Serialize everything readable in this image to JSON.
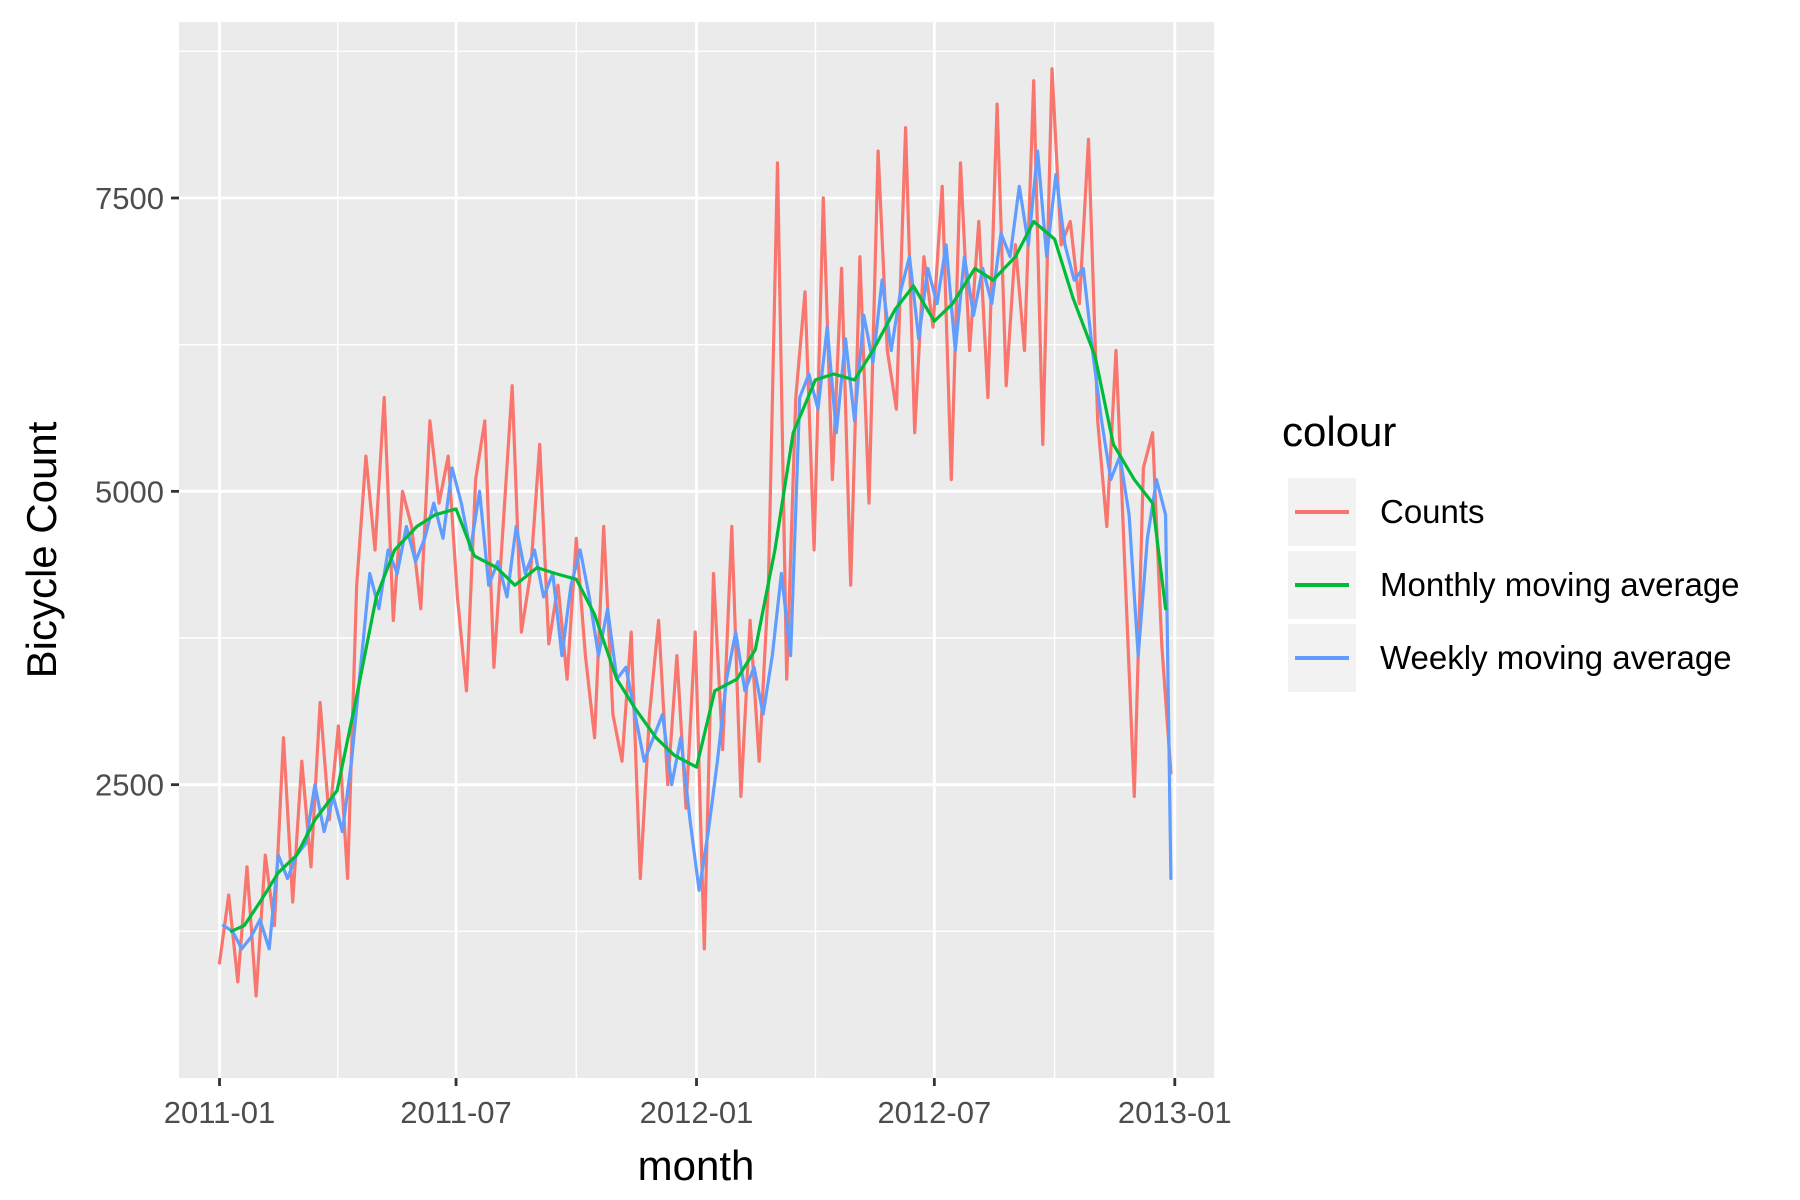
{
  "chart_data": {
    "type": "line",
    "xlabel": "month",
    "ylabel": "Bicycle Count",
    "x_ticks": [
      "2011-01",
      "2011-07",
      "2012-01",
      "2012-07",
      "2013-01"
    ],
    "y_ticks": [
      2500,
      5000,
      7500
    ],
    "xlim": [
      "2010-12-01",
      "2013-01-31"
    ],
    "ylim": [
      0,
      9000
    ],
    "grid": true,
    "legend": {
      "title": "colour",
      "placement": "right",
      "entries": [
        "Counts",
        "Monthly moving average",
        "Weekly moving average"
      ]
    },
    "series": [
      {
        "name": "Counts",
        "color": "#F8766D",
        "x": [
          "2011-01-01",
          "2011-01-08",
          "2011-01-15",
          "2011-01-22",
          "2011-01-29",
          "2011-02-05",
          "2011-02-12",
          "2011-02-19",
          "2011-02-26",
          "2011-03-05",
          "2011-03-12",
          "2011-03-19",
          "2011-03-26",
          "2011-04-02",
          "2011-04-09",
          "2011-04-16",
          "2011-04-23",
          "2011-04-30",
          "2011-05-07",
          "2011-05-14",
          "2011-05-21",
          "2011-05-28",
          "2011-06-04",
          "2011-06-11",
          "2011-06-18",
          "2011-06-25",
          "2011-07-02",
          "2011-07-09",
          "2011-07-16",
          "2011-07-23",
          "2011-07-30",
          "2011-08-06",
          "2011-08-13",
          "2011-08-20",
          "2011-08-27",
          "2011-09-03",
          "2011-09-10",
          "2011-09-17",
          "2011-09-24",
          "2011-10-01",
          "2011-10-08",
          "2011-10-15",
          "2011-10-22",
          "2011-10-29",
          "2011-11-05",
          "2011-11-12",
          "2011-11-19",
          "2011-11-26",
          "2011-12-03",
          "2011-12-10",
          "2011-12-17",
          "2011-12-24",
          "2011-12-31",
          "2012-01-07",
          "2012-01-14",
          "2012-01-21",
          "2012-01-28",
          "2012-02-04",
          "2012-02-11",
          "2012-02-18",
          "2012-02-25",
          "2012-03-03",
          "2012-03-10",
          "2012-03-17",
          "2012-03-24",
          "2012-03-31",
          "2012-04-07",
          "2012-04-14",
          "2012-04-21",
          "2012-04-28",
          "2012-05-05",
          "2012-05-12",
          "2012-05-19",
          "2012-05-26",
          "2012-06-02",
          "2012-06-09",
          "2012-06-16",
          "2012-06-23",
          "2012-06-30",
          "2012-07-07",
          "2012-07-14",
          "2012-07-21",
          "2012-07-28",
          "2012-08-04",
          "2012-08-11",
          "2012-08-18",
          "2012-08-25",
          "2012-09-01",
          "2012-09-08",
          "2012-09-15",
          "2012-09-22",
          "2012-09-29",
          "2012-10-06",
          "2012-10-13",
          "2012-10-20",
          "2012-10-27",
          "2012-11-03",
          "2012-11-10",
          "2012-11-17",
          "2012-11-24",
          "2012-12-01",
          "2012-12-08",
          "2012-12-15",
          "2012-12-22",
          "2012-12-29"
        ],
        "values": [
          980,
          1560,
          820,
          1800,
          700,
          1900,
          1300,
          2900,
          1500,
          2700,
          1800,
          3200,
          2200,
          3000,
          1700,
          4200,
          5300,
          4500,
          5800,
          3900,
          5000,
          4700,
          4000,
          5600,
          4900,
          5300,
          4100,
          3300,
          5100,
          5600,
          3500,
          4700,
          5900,
          3800,
          4300,
          5400,
          3700,
          4200,
          3400,
          4600,
          3600,
          2900,
          4700,
          3100,
          2700,
          3800,
          1700,
          3100,
          3900,
          2500,
          3600,
          2300,
          3800,
          1100,
          4300,
          2800,
          4700,
          2400,
          3900,
          2700,
          4200,
          7800,
          3400,
          5800,
          6700,
          4500,
          7500,
          5100,
          6900,
          4200,
          7000,
          4900,
          7900,
          6200,
          5700,
          8100,
          5500,
          7000,
          6400,
          7600,
          5100,
          7800,
          6200,
          7300,
          5800,
          8300,
          5900,
          7100,
          6200,
          8500,
          5400,
          8600,
          7100,
          7300,
          6600,
          8000,
          5600,
          4700,
          6200,
          4300,
          2400,
          5200,
          5500,
          3700,
          2600
        ]
      },
      {
        "name": "Monthly moving average",
        "color": "#00BA38",
        "x": [
          "2011-01-10",
          "2011-01-20",
          "2011-02-01",
          "2011-02-15",
          "2011-03-01",
          "2011-03-15",
          "2011-04-01",
          "2011-04-15",
          "2011-05-01",
          "2011-05-15",
          "2011-06-01",
          "2011-06-15",
          "2011-07-01",
          "2011-07-15",
          "2011-08-01",
          "2011-08-15",
          "2011-09-01",
          "2011-09-15",
          "2011-10-01",
          "2011-10-15",
          "2011-11-01",
          "2011-11-15",
          "2011-12-01",
          "2011-12-15",
          "2012-01-01",
          "2012-01-15",
          "2012-02-01",
          "2012-02-15",
          "2012-03-01",
          "2012-03-15",
          "2012-04-01",
          "2012-04-15",
          "2012-05-01",
          "2012-05-15",
          "2012-06-01",
          "2012-06-15",
          "2012-07-01",
          "2012-07-15",
          "2012-08-01",
          "2012-08-15",
          "2012-09-01",
          "2012-09-15",
          "2012-10-01",
          "2012-10-15",
          "2012-11-01",
          "2012-11-15",
          "2012-12-01",
          "2012-12-15",
          "2012-12-25"
        ],
        "values": [
          1250,
          1300,
          1500,
          1750,
          1900,
          2200,
          2450,
          3200,
          4100,
          4500,
          4700,
          4800,
          4850,
          4450,
          4350,
          4200,
          4350,
          4300,
          4250,
          3950,
          3400,
          3150,
          2900,
          2750,
          2650,
          3300,
          3400,
          3650,
          4500,
          5500,
          5950,
          6000,
          5950,
          6200,
          6550,
          6750,
          6450,
          6600,
          6900,
          6800,
          7000,
          7300,
          7150,
          6650,
          6150,
          5400,
          5100,
          4900,
          4000
        ]
      },
      {
        "name": "Weekly moving average",
        "color": "#619CFF",
        "x": [
          "2011-01-04",
          "2011-01-11",
          "2011-01-18",
          "2011-01-25",
          "2011-02-01",
          "2011-02-08",
          "2011-02-15",
          "2011-02-22",
          "2011-03-01",
          "2011-03-08",
          "2011-03-15",
          "2011-03-22",
          "2011-03-29",
          "2011-04-05",
          "2011-04-12",
          "2011-04-19",
          "2011-04-26",
          "2011-05-03",
          "2011-05-10",
          "2011-05-17",
          "2011-05-24",
          "2011-05-31",
          "2011-06-07",
          "2011-06-14",
          "2011-06-21",
          "2011-06-28",
          "2011-07-05",
          "2011-07-12",
          "2011-07-19",
          "2011-07-26",
          "2011-08-02",
          "2011-08-09",
          "2011-08-16",
          "2011-08-23",
          "2011-08-30",
          "2011-09-06",
          "2011-09-13",
          "2011-09-20",
          "2011-09-27",
          "2011-10-04",
          "2011-10-11",
          "2011-10-18",
          "2011-10-25",
          "2011-11-01",
          "2011-11-08",
          "2011-11-15",
          "2011-11-22",
          "2011-11-29",
          "2011-12-06",
          "2011-12-13",
          "2011-12-20",
          "2011-12-27",
          "2012-01-03",
          "2012-01-10",
          "2012-01-17",
          "2012-01-24",
          "2012-01-31",
          "2012-02-07",
          "2012-02-14",
          "2012-02-21",
          "2012-02-28",
          "2012-03-06",
          "2012-03-13",
          "2012-03-20",
          "2012-03-27",
          "2012-04-03",
          "2012-04-10",
          "2012-04-17",
          "2012-04-24",
          "2012-05-01",
          "2012-05-08",
          "2012-05-15",
          "2012-05-22",
          "2012-05-29",
          "2012-06-05",
          "2012-06-12",
          "2012-06-19",
          "2012-06-26",
          "2012-07-03",
          "2012-07-10",
          "2012-07-17",
          "2012-07-24",
          "2012-07-31",
          "2012-08-07",
          "2012-08-14",
          "2012-08-21",
          "2012-08-28",
          "2012-09-04",
          "2012-09-11",
          "2012-09-18",
          "2012-09-25",
          "2012-10-02",
          "2012-10-09",
          "2012-10-16",
          "2012-10-23",
          "2012-10-30",
          "2012-11-06",
          "2012-11-13",
          "2012-11-20",
          "2012-11-27",
          "2012-12-04",
          "2012-12-11",
          "2012-12-18",
          "2012-12-25",
          "2012-12-29"
        ],
        "values": [
          1300,
          1250,
          1100,
          1200,
          1350,
          1100,
          1900,
          1700,
          1900,
          2000,
          2500,
          2100,
          2400,
          2100,
          2700,
          3500,
          4300,
          4000,
          4500,
          4300,
          4700,
          4400,
          4600,
          4900,
          4600,
          5200,
          4900,
          4500,
          5000,
          4200,
          4400,
          4100,
          4700,
          4300,
          4500,
          4100,
          4300,
          3600,
          4200,
          4500,
          4100,
          3600,
          4000,
          3400,
          3500,
          3100,
          2700,
          2900,
          3100,
          2500,
          2900,
          2200,
          1600,
          2100,
          2700,
          3400,
          3800,
          3300,
          3500,
          3100,
          3600,
          4300,
          3600,
          5800,
          6000,
          5700,
          6400,
          5500,
          6300,
          5600,
          6500,
          6100,
          6800,
          6200,
          6700,
          7000,
          6300,
          6900,
          6600,
          7100,
          6200,
          7000,
          6500,
          6900,
          6600,
          7200,
          7000,
          7600,
          7100,
          7900,
          7000,
          7700,
          7100,
          6800,
          6900,
          6200,
          5600,
          5100,
          5300,
          4800,
          3600,
          4600,
          5100,
          4800,
          1700
        ]
      }
    ]
  }
}
